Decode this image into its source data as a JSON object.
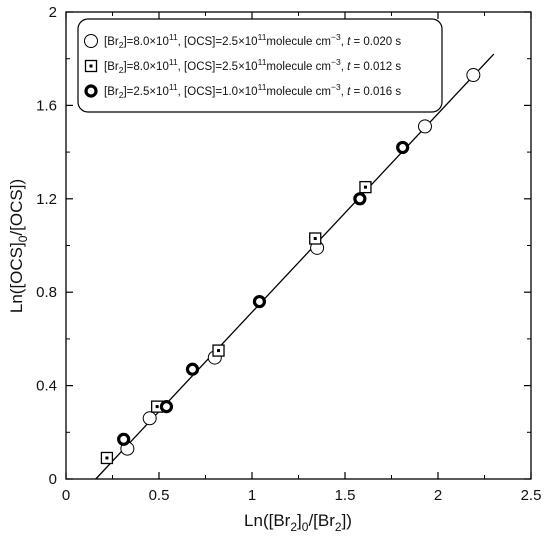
{
  "chart_data": {
    "type": "scatter",
    "title": "",
    "xlabel": {
      "prefix": "Ln([Br",
      "sub1": "2",
      "mid": "]",
      "sub2": "0",
      "mid2": "/[Br",
      "sub3": "2",
      "suffix": "])"
    },
    "ylabel": {
      "prefix": "Ln([OCS]",
      "sub1": "0",
      "suffix": "/[OCS])"
    },
    "xlim": [
      0,
      2.5
    ],
    "ylim": [
      0,
      2.0
    ],
    "x_ticks": [
      "0",
      "0.5",
      "1",
      "1.5",
      "2",
      "2.5"
    ],
    "y_ticks": [
      "0",
      "0.4",
      "0.8",
      "1.2",
      "1.6",
      "2"
    ],
    "grid": false,
    "legend_position": "top-left",
    "fit_line": {
      "x": [
        0.16,
        2.3
      ],
      "y": [
        0.0,
        1.82
      ]
    },
    "series": [
      {
        "marker": "open-circle",
        "legend": {
          "t1": "[Br",
          "s1": "2",
          "t2": "]=8.0×10",
          "e1": "11",
          "t3": ", [OCS]=2.5×10",
          "e2": "11",
          "t4": "molecule cm",
          "e3": "−3",
          "t5": ", ",
          "tvar": "t",
          "t6": " = 0.020 s"
        },
        "points": [
          [
            0.33,
            0.13
          ],
          [
            0.45,
            0.26
          ],
          [
            0.8,
            0.52
          ],
          [
            1.35,
            0.99
          ],
          [
            1.93,
            1.51
          ],
          [
            2.19,
            1.73
          ]
        ]
      },
      {
        "marker": "dotted-square",
        "legend": {
          "t1": "[Br",
          "s1": "2",
          "t2": "]=8.0×10",
          "e1": "11",
          "t3": ", [OCS]=2.5×10",
          "e2": "11",
          "t4": "molecule cm",
          "e3": "−3",
          "t5": ",  ",
          "tvar": "t",
          "t6": " = 0.012 s"
        },
        "points": [
          [
            0.22,
            0.09
          ],
          [
            0.49,
            0.31
          ],
          [
            0.82,
            0.55
          ],
          [
            1.34,
            1.03
          ],
          [
            1.61,
            1.25
          ]
        ]
      },
      {
        "marker": "bold-circle",
        "legend": {
          "t1": "[Br",
          "s1": "2",
          "t2": "]=2.5×10",
          "e1": "11",
          "t3": ", [OCS]=1.0×10",
          "e2": "11",
          "t4": "molecule cm",
          "e3": "−3",
          "t5": ",  ",
          "tvar": "t",
          "t6": " = 0.016 s"
        },
        "points": [
          [
            0.31,
            0.17
          ],
          [
            0.54,
            0.31
          ],
          [
            0.68,
            0.47
          ],
          [
            1.04,
            0.76
          ],
          [
            1.58,
            1.2
          ],
          [
            1.81,
            1.42
          ]
        ]
      }
    ]
  }
}
